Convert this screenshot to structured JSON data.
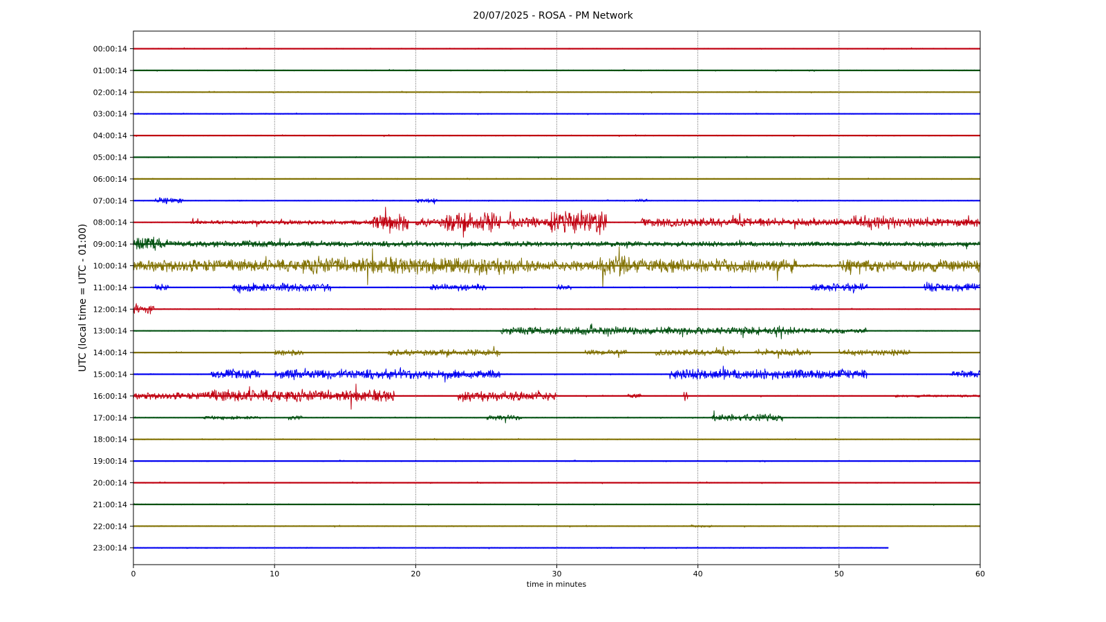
{
  "chart_data": {
    "type": "line",
    "title": "20/07/2025 - ROSA - PM Network",
    "xlabel": "time in minutes",
    "ylabel": "UTC (local time = UTC - 01:00)",
    "xlim": [
      0,
      60
    ],
    "x_ticks": [
      "0",
      "10",
      "20",
      "30",
      "40",
      "50",
      "60"
    ],
    "grid": "vertical dotted lines at x ticks",
    "color_cycle": [
      "#c00010",
      "#005010",
      "#807000",
      "#0000f0"
    ],
    "series": [
      {
        "name": "00:00:14",
        "end_min": 60,
        "activity": []
      },
      {
        "name": "01:00:14",
        "end_min": 60,
        "activity": []
      },
      {
        "name": "02:00:14",
        "end_min": 60,
        "activity": []
      },
      {
        "name": "03:00:14",
        "end_min": 60,
        "activity": []
      },
      {
        "name": "04:00:14",
        "end_min": 60,
        "activity": []
      },
      {
        "name": "05:00:14",
        "end_min": 60,
        "activity": []
      },
      {
        "name": "06:00:14",
        "end_min": 60,
        "activity": []
      },
      {
        "name": "07:00:14",
        "end_min": 60,
        "activity": [
          [
            1.5,
            3.5,
            0.4
          ],
          [
            20,
            21.5,
            0.3
          ],
          [
            35.5,
            36.5,
            0.2
          ]
        ]
      },
      {
        "name": "08:00:14",
        "end_min": 60,
        "activity": [
          [
            4,
            10,
            0.25
          ],
          [
            10,
            17,
            0.3
          ],
          [
            17,
            19.5,
            0.9
          ],
          [
            20,
            22,
            0.5
          ],
          [
            22,
            26,
            1.1
          ],
          [
            26.5,
            29.5,
            0.6
          ],
          [
            29.5,
            33.5,
            1.3
          ],
          [
            36,
            46,
            0.5
          ],
          [
            46,
            51,
            0.45
          ],
          [
            51,
            54,
            0.8
          ],
          [
            54,
            60,
            0.5
          ]
        ]
      },
      {
        "name": "09:00:14",
        "end_min": 60,
        "activity": [
          [
            0,
            2,
            0.8
          ],
          [
            2,
            20,
            0.35
          ],
          [
            20,
            60,
            0.3
          ]
        ]
      },
      {
        "name": "10:00:14",
        "end_min": 60,
        "activity": [
          [
            0,
            12,
            0.7
          ],
          [
            12,
            20,
            1.0
          ],
          [
            20,
            28,
            0.9
          ],
          [
            28,
            33,
            0.6
          ],
          [
            33,
            35,
            1.2
          ],
          [
            35,
            47,
            0.8
          ],
          [
            47,
            50,
            0.2
          ],
          [
            50,
            60,
            0.7
          ]
        ]
      },
      {
        "name": "11:00:14",
        "end_min": 60,
        "activity": [
          [
            1.5,
            2.5,
            0.4
          ],
          [
            7,
            14,
            0.5
          ],
          [
            21,
            25,
            0.4
          ],
          [
            30,
            31,
            0.3
          ],
          [
            48,
            52,
            0.5
          ],
          [
            56,
            60,
            0.5
          ]
        ]
      },
      {
        "name": "12:00:14",
        "end_min": 60,
        "activity": [
          [
            0,
            1.5,
            0.5
          ]
        ]
      },
      {
        "name": "13:00:14",
        "end_min": 60,
        "activity": [
          [
            26,
            47,
            0.45
          ],
          [
            47,
            52,
            0.3
          ]
        ]
      },
      {
        "name": "14:00:14",
        "end_min": 60,
        "activity": [
          [
            10,
            12,
            0.4
          ],
          [
            18,
            26,
            0.35
          ],
          [
            32,
            35,
            0.3
          ],
          [
            37,
            43,
            0.35
          ],
          [
            44,
            48,
            0.4
          ],
          [
            50,
            55,
            0.35
          ]
        ]
      },
      {
        "name": "15:00:14",
        "end_min": 60,
        "activity": [
          [
            5.5,
            9,
            0.5
          ],
          [
            10,
            20,
            0.6
          ],
          [
            20,
            26,
            0.5
          ],
          [
            38,
            52,
            0.6
          ],
          [
            58,
            60,
            0.5
          ]
        ]
      },
      {
        "name": "16:00:14",
        "end_min": 60,
        "activity": [
          [
            0,
            5,
            0.4
          ],
          [
            5,
            18.5,
            0.7
          ],
          [
            23,
            30,
            0.55
          ],
          [
            35,
            36,
            0.3
          ],
          [
            39,
            39.3,
            0.6
          ],
          [
            54,
            60,
            0.15
          ]
        ]
      },
      {
        "name": "17:00:14",
        "end_min": 60,
        "activity": [
          [
            5,
            9,
            0.2
          ],
          [
            11,
            12,
            0.3
          ],
          [
            25,
            27.5,
            0.3
          ],
          [
            41,
            46,
            0.4
          ]
        ]
      },
      {
        "name": "18:00:14",
        "end_min": 60,
        "activity": []
      },
      {
        "name": "19:00:14",
        "end_min": 60,
        "activity": []
      },
      {
        "name": "20:00:14",
        "end_min": 60,
        "activity": []
      },
      {
        "name": "21:00:14",
        "end_min": 60,
        "activity": []
      },
      {
        "name": "22:00:14",
        "end_min": 60,
        "activity": [
          [
            39.5,
            41,
            0.15
          ]
        ]
      },
      {
        "name": "23:00:14",
        "end_min": 53.5,
        "activity": []
      }
    ]
  }
}
